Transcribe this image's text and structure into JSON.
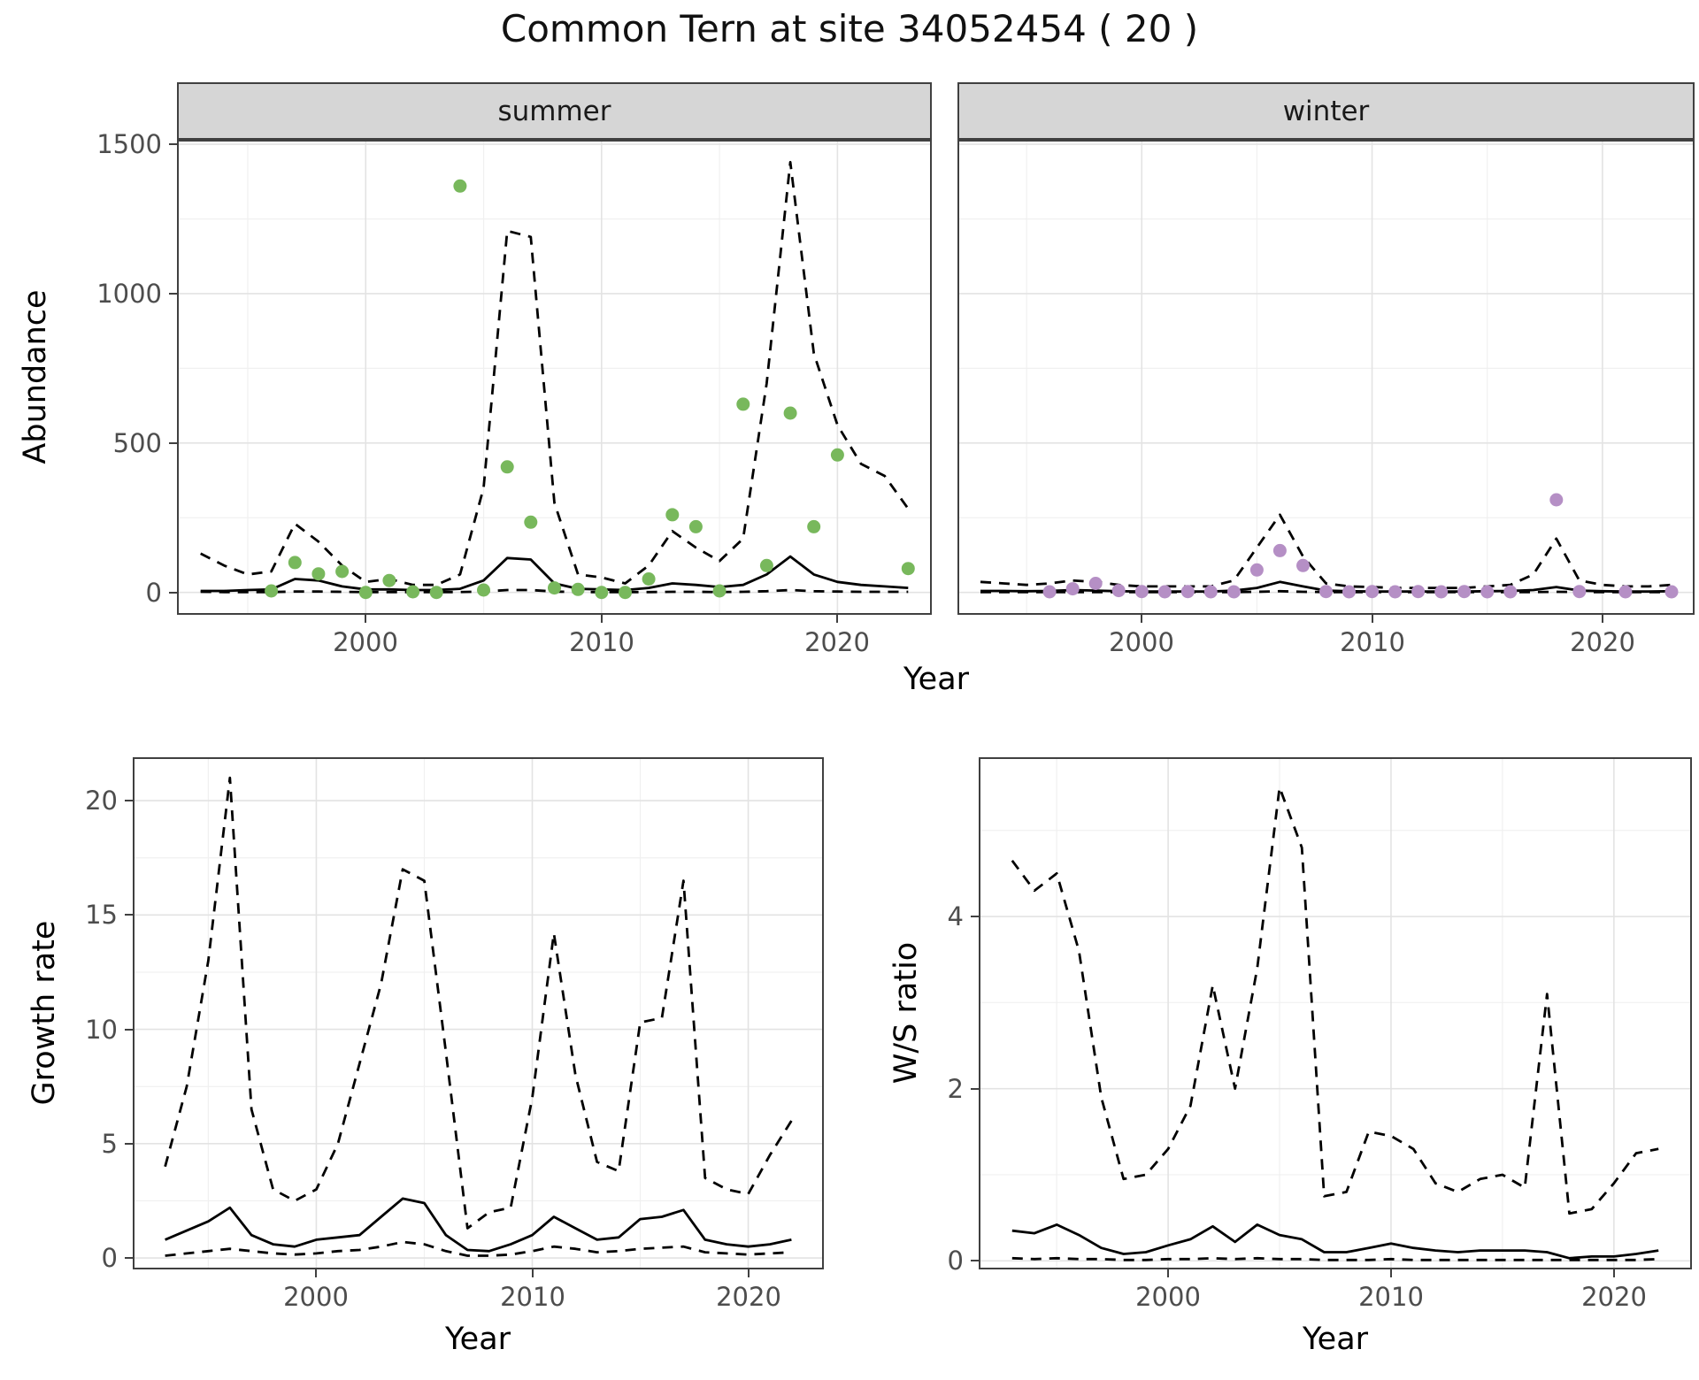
{
  "title": "Common Tern at site 34052454 ( 20 )",
  "labels": {
    "y_top": "Abundance",
    "x_top": "Year",
    "y_growth": "Growth rate",
    "x_growth": "Year",
    "y_ws": "W/S ratio",
    "x_ws": "Year"
  },
  "colors": {
    "summer_point": "#78b85c",
    "winter_point": "#b58fc5",
    "line": "#000000",
    "grid_major": "#e3e3e3",
    "grid_minor": "#f0f0f0",
    "strip_bg": "#d6d6d6",
    "panel_border": "#404040"
  },
  "chart_data": [
    {
      "name": "abundance-summer",
      "type": "line",
      "facet": "summer",
      "xlabel": "Year",
      "ylabel": "Abundance",
      "xlim": [
        1992,
        2024
      ],
      "ylim": [
        -75,
        1515
      ],
      "xticks": [
        2000,
        2010,
        2020
      ],
      "yticks": [
        0,
        500,
        1000,
        1500
      ],
      "xminor": [
        1995,
        2005,
        2015
      ],
      "yminor": [
        250,
        750,
        1250
      ],
      "years": [
        1993,
        1994,
        1995,
        1996,
        1997,
        1998,
        1999,
        2000,
        2001,
        2002,
        2003,
        2004,
        2005,
        2006,
        2007,
        2008,
        2009,
        2010,
        2011,
        2012,
        2013,
        2014,
        2015,
        2016,
        2017,
        2018,
        2019,
        2020,
        2021,
        2022,
        2023
      ],
      "series": [
        {
          "name": "upper-ci",
          "style": "dashed",
          "values": [
            130,
            90,
            60,
            70,
            230,
            170,
            90,
            35,
            45,
            25,
            25,
            60,
            350,
            1210,
            1190,
            300,
            60,
            50,
            30,
            90,
            205,
            150,
            105,
            180,
            700,
            1440,
            800,
            560,
            430,
            390,
            280
          ]
        },
        {
          "name": "mean",
          "style": "solid",
          "values": [
            5,
            5,
            8,
            10,
            45,
            40,
            20,
            10,
            10,
            8,
            8,
            12,
            40,
            115,
            110,
            30,
            12,
            10,
            8,
            15,
            30,
            25,
            18,
            25,
            60,
            120,
            60,
            35,
            25,
            20,
            15
          ]
        },
        {
          "name": "lower-ci",
          "style": "dashed",
          "values": [
            2,
            1,
            1,
            1,
            3,
            3,
            2,
            1,
            1,
            1,
            1,
            1,
            3,
            8,
            8,
            3,
            1,
            1,
            1,
            1,
            2,
            2,
            1,
            2,
            4,
            8,
            4,
            3,
            2,
            2,
            2
          ]
        }
      ],
      "points": {
        "name": "observed-counts",
        "color": "summer_point",
        "years": [
          1996,
          1997,
          1998,
          1999,
          2000,
          2001,
          2002,
          2003,
          2004,
          2005,
          2006,
          2007,
          2008,
          2009,
          2010,
          2011,
          2012,
          2013,
          2014,
          2015,
          2016,
          2017,
          2018,
          2019,
          2020,
          2023
        ],
        "values": [
          5,
          100,
          62,
          70,
          0,
          40,
          2,
          0,
          1360,
          8,
          420,
          235,
          15,
          10,
          0,
          0,
          45,
          260,
          220,
          5,
          630,
          90,
          600,
          220,
          460,
          80
        ]
      }
    },
    {
      "name": "abundance-winter",
      "type": "line",
      "facet": "winter",
      "xlabel": "Year",
      "ylabel": "Abundance",
      "xlim": [
        1992,
        2024
      ],
      "ylim": [
        -75,
        1515
      ],
      "xticks": [
        2000,
        2010,
        2020
      ],
      "yticks": [
        0,
        500,
        1000,
        1500
      ],
      "xminor": [
        1995,
        2005,
        2015
      ],
      "yminor": [
        250,
        750,
        1250
      ],
      "years": [
        1993,
        1994,
        1995,
        1996,
        1997,
        1998,
        1999,
        2000,
        2001,
        2002,
        2003,
        2004,
        2005,
        2006,
        2007,
        2008,
        2009,
        2010,
        2011,
        2012,
        2013,
        2014,
        2015,
        2016,
        2017,
        2018,
        2019,
        2020,
        2021,
        2022,
        2023
      ],
      "series": [
        {
          "name": "upper-ci",
          "style": "dashed",
          "values": [
            35,
            30,
            25,
            30,
            40,
            35,
            25,
            20,
            20,
            20,
            20,
            40,
            150,
            260,
            120,
            30,
            20,
            18,
            15,
            15,
            15,
            15,
            20,
            25,
            60,
            180,
            40,
            25,
            20,
            20,
            25
          ]
        },
        {
          "name": "mean",
          "style": "solid",
          "values": [
            5,
            5,
            4,
            5,
            8,
            6,
            4,
            3,
            3,
            3,
            3,
            6,
            15,
            35,
            20,
            6,
            4,
            3,
            3,
            3,
            3,
            3,
            4,
            5,
            8,
            18,
            6,
            4,
            3,
            3,
            4
          ]
        },
        {
          "name": "lower-ci",
          "style": "dashed",
          "values": [
            1,
            1,
            1,
            1,
            1,
            1,
            1,
            1,
            1,
            1,
            1,
            1,
            2,
            4,
            2,
            1,
            1,
            1,
            1,
            1,
            1,
            1,
            1,
            1,
            1,
            2,
            1,
            1,
            1,
            1,
            1
          ]
        }
      ],
      "points": {
        "name": "observed-counts",
        "color": "winter_point",
        "years": [
          1996,
          1997,
          1998,
          1999,
          2000,
          2001,
          2002,
          2003,
          2004,
          2005,
          2006,
          2007,
          2008,
          2009,
          2010,
          2011,
          2012,
          2013,
          2014,
          2015,
          2016,
          2018,
          2019,
          2021,
          2023
        ],
        "values": [
          2,
          12,
          30,
          6,
          3,
          2,
          3,
          2,
          2,
          75,
          140,
          90,
          3,
          2,
          3,
          2,
          3,
          2,
          3,
          2,
          2,
          310,
          3,
          2,
          2
        ]
      }
    },
    {
      "name": "growth-rate",
      "type": "line",
      "facet": "",
      "xlabel": "Year",
      "ylabel": "Growth rate",
      "xlim": [
        1991.5,
        2023.5
      ],
      "ylim": [
        -0.5,
        21.9
      ],
      "xticks": [
        2000,
        2010,
        2020
      ],
      "yticks": [
        0,
        5,
        10,
        15,
        20
      ],
      "xminor": [
        1995,
        2005,
        2015
      ],
      "yminor": [
        2.5,
        7.5,
        12.5,
        17.5
      ],
      "years": [
        1993,
        1994,
        1995,
        1996,
        1997,
        1998,
        1999,
        2000,
        2001,
        2002,
        2003,
        2004,
        2005,
        2006,
        2007,
        2008,
        2009,
        2010,
        2011,
        2012,
        2013,
        2014,
        2015,
        2016,
        2017,
        2018,
        2019,
        2020,
        2021,
        2022
      ],
      "series": [
        {
          "name": "upper-ci",
          "style": "dashed",
          "values": [
            4.0,
            7.5,
            13,
            21,
            6.5,
            3.0,
            2.5,
            3.0,
            5.0,
            8.5,
            12,
            17,
            16.5,
            9.0,
            1.3,
            2.0,
            2.2,
            7.0,
            14.2,
            8.0,
            4.2,
            3.8,
            10.3,
            10.5,
            16.5,
            3.5,
            3.0,
            2.8,
            4.5,
            6.0
          ]
        },
        {
          "name": "mean",
          "style": "solid",
          "values": [
            0.8,
            1.2,
            1.6,
            2.2,
            1.0,
            0.6,
            0.5,
            0.8,
            0.9,
            1.0,
            1.8,
            2.6,
            2.4,
            1.0,
            0.35,
            0.3,
            0.6,
            1.0,
            1.8,
            1.3,
            0.8,
            0.9,
            1.7,
            1.8,
            2.1,
            0.8,
            0.6,
            0.5,
            0.6,
            0.8
          ]
        },
        {
          "name": "lower-ci",
          "style": "dashed",
          "values": [
            0.1,
            0.2,
            0.3,
            0.4,
            0.3,
            0.2,
            0.15,
            0.2,
            0.3,
            0.35,
            0.5,
            0.7,
            0.6,
            0.3,
            0.1,
            0.1,
            0.15,
            0.3,
            0.5,
            0.4,
            0.25,
            0.3,
            0.4,
            0.45,
            0.5,
            0.25,
            0.2,
            0.15,
            0.2,
            0.25
          ]
        }
      ]
    },
    {
      "name": "ws-ratio",
      "type": "line",
      "facet": "",
      "xlabel": "Year",
      "ylabel": "W/S ratio",
      "xlim": [
        1991.5,
        2023.5
      ],
      "ylim": [
        -0.1,
        5.85
      ],
      "xticks": [
        2000,
        2010,
        2020
      ],
      "yticks": [
        0,
        2,
        4
      ],
      "xminor": [
        1995,
        2005,
        2015
      ],
      "yminor": [
        1,
        3,
        5
      ],
      "years": [
        1993,
        1994,
        1995,
        1996,
        1997,
        1998,
        1999,
        2000,
        2001,
        2002,
        2003,
        2004,
        2005,
        2006,
        2007,
        2008,
        2009,
        2010,
        2011,
        2012,
        2013,
        2014,
        2015,
        2016,
        2017,
        2018,
        2019,
        2020,
        2021,
        2022
      ],
      "series": [
        {
          "name": "upper-ci",
          "style": "dashed",
          "values": [
            4.65,
            4.3,
            4.5,
            3.6,
            1.9,
            0.95,
            1.0,
            1.3,
            1.8,
            3.2,
            2.0,
            3.4,
            5.5,
            4.8,
            0.75,
            0.8,
            1.5,
            1.45,
            1.3,
            0.9,
            0.8,
            0.95,
            1.0,
            0.85,
            3.1,
            0.55,
            0.6,
            0.9,
            1.25,
            1.3
          ]
        },
        {
          "name": "mean",
          "style": "solid",
          "values": [
            0.35,
            0.32,
            0.42,
            0.3,
            0.15,
            0.08,
            0.1,
            0.18,
            0.25,
            0.4,
            0.22,
            0.42,
            0.3,
            0.25,
            0.1,
            0.1,
            0.15,
            0.2,
            0.15,
            0.12,
            0.1,
            0.12,
            0.12,
            0.12,
            0.1,
            0.03,
            0.05,
            0.05,
            0.08,
            0.12
          ]
        },
        {
          "name": "lower-ci",
          "style": "dashed",
          "values": [
            0.03,
            0.02,
            0.03,
            0.02,
            0.02,
            0.01,
            0.01,
            0.02,
            0.02,
            0.03,
            0.02,
            0.03,
            0.02,
            0.02,
            0.01,
            0.01,
            0.01,
            0.02,
            0.01,
            0.01,
            0.01,
            0.01,
            0.01,
            0.01,
            0.01,
            0.01,
            0.01,
            0.01,
            0.01,
            0.02
          ]
        }
      ]
    }
  ]
}
